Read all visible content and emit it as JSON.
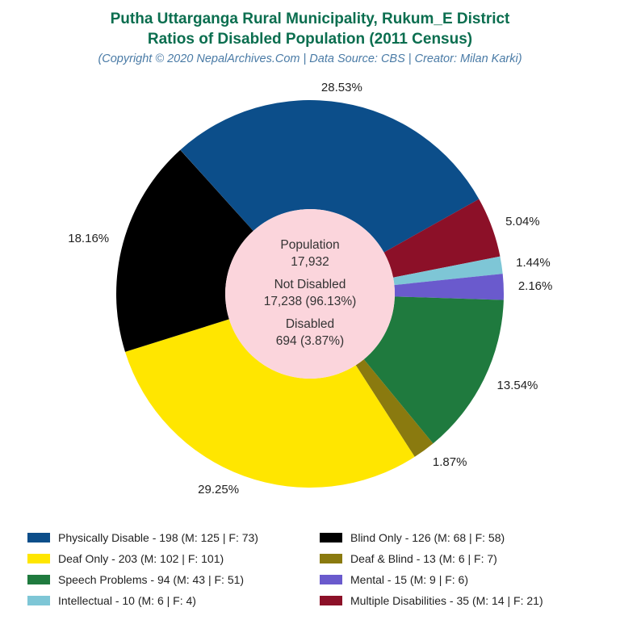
{
  "title": {
    "line1": "Putha Uttarganga Rural Municipality, Rukum_E District",
    "line2": "Ratios of Disabled Population (2011 Census)",
    "subtitle": "(Copyright © 2020 NepalArchives.Com | Data Source: CBS | Creator: Milan Karki)",
    "color": "#0b6e4f",
    "subtitle_color": "#4a7ba6",
    "fontsize": 19,
    "subtitle_fontsize": 14.5
  },
  "chart": {
    "type": "donut",
    "outer_radius": 240,
    "inner_radius": 105,
    "center_fill": "#fbd5dc",
    "background": "#ffffff",
    "start_angle_deg": -42,
    "label_fontsize": 15,
    "label_color": "#222222",
    "slices": [
      {
        "key": "physically",
        "pct": 28.53,
        "color": "#0c4e8a",
        "label": "28.53%"
      },
      {
        "key": "multiple",
        "pct": 5.04,
        "color": "#8c1028",
        "label": "5.04%"
      },
      {
        "key": "intellectual",
        "pct": 1.44,
        "color": "#7ec6d6",
        "label": "1.44%"
      },
      {
        "key": "mental",
        "pct": 2.16,
        "color": "#6a5acd",
        "label": "2.16%"
      },
      {
        "key": "speech",
        "pct": 13.54,
        "color": "#1f7a3e",
        "label": "13.54%"
      },
      {
        "key": "deafblind",
        "pct": 1.87,
        "color": "#8a7a0f",
        "label": "1.87%"
      },
      {
        "key": "deaf",
        "pct": 29.25,
        "color": "#ffe600",
        "label": "29.25%"
      },
      {
        "key": "blind",
        "pct": 18.16,
        "color": "#000000",
        "label": "18.16%"
      }
    ]
  },
  "center": {
    "pop_label": "Population",
    "pop_value": "17,932",
    "notdis_label": "Not Disabled",
    "notdis_value": "17,238 (96.13%)",
    "dis_label": "Disabled",
    "dis_value": "694 (3.87%)",
    "fontsize": 15.5,
    "color": "#333333"
  },
  "legend": {
    "fontsize": 14,
    "color": "#222222",
    "swatch_w": 28,
    "swatch_h": 12,
    "items": [
      {
        "color": "#0c4e8a",
        "text": "Physically Disable - 198 (M: 125 | F: 73)"
      },
      {
        "color": "#000000",
        "text": "Blind Only - 126 (M: 68 | F: 58)"
      },
      {
        "color": "#ffe600",
        "text": "Deaf Only - 203 (M: 102 | F: 101)"
      },
      {
        "color": "#8a7a0f",
        "text": "Deaf & Blind - 13 (M: 6 | F: 7)"
      },
      {
        "color": "#1f7a3e",
        "text": "Speech Problems - 94 (M: 43 | F: 51)"
      },
      {
        "color": "#6a5acd",
        "text": "Mental - 15 (M: 9 | F: 6)"
      },
      {
        "color": "#7ec6d6",
        "text": "Intellectual - 10 (M: 6 | F: 4)"
      },
      {
        "color": "#8c1028",
        "text": "Multiple Disabilities - 35 (M: 14 | F: 21)"
      }
    ]
  }
}
